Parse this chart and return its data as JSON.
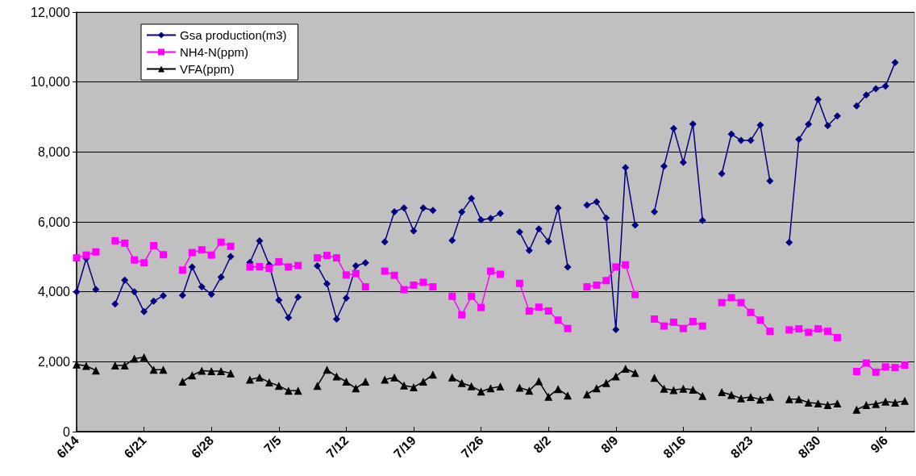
{
  "chart_data": {
    "type": "line",
    "x": [
      "--06-14",
      "--06-15",
      "--06-16",
      "--06-17",
      "--06-18",
      "--06-19",
      "--06-20",
      "--06-21",
      "--06-22",
      "--06-23",
      "--06-24",
      "--06-25",
      "--06-26",
      "--06-27",
      "--06-28",
      "--06-29",
      "--06-30",
      "--07-01",
      "--07-02",
      "--07-03",
      "--07-04",
      "--07-05",
      "--07-06",
      "--07-07",
      "--07-08",
      "--07-09",
      "--07-10",
      "--07-11",
      "--07-12",
      "--07-13",
      "--07-14",
      "--07-15",
      "--07-16",
      "--07-17",
      "--07-18",
      "--07-19",
      "--07-20",
      "--07-21",
      "--07-22",
      "--07-23",
      "--07-24",
      "--07-25",
      "--07-26",
      "--07-27",
      "--07-28",
      "--07-29",
      "--07-30",
      "--07-31",
      "--08-01",
      "--08-02",
      "--08-03",
      "--08-04",
      "--08-05",
      "--08-06",
      "--08-07",
      "--08-08",
      "--08-09",
      "--08-10",
      "--08-11",
      "--08-12",
      "--08-13",
      "--08-14",
      "--08-15",
      "--08-16",
      "--08-17",
      "--08-18",
      "--08-19",
      "--08-20",
      "--08-21",
      "--08-22",
      "--08-23",
      "--08-24",
      "--08-25",
      "--08-26",
      "--08-27",
      "--08-28",
      "--08-29",
      "--08-30",
      "--08-31",
      "--09-01",
      "--09-02",
      "--09-03",
      "--09-04",
      "--09-05",
      "--09-06",
      "--09-07",
      "--09-08"
    ],
    "series": [
      {
        "name": "Gsa production(m3)",
        "color": "#000080",
        "marker": "diamond",
        "values": [
          4000,
          4950,
          4070,
          null,
          3650,
          4330,
          4000,
          3430,
          3730,
          3890,
          null,
          3900,
          4710,
          4140,
          3930,
          4420,
          5010,
          null,
          4840,
          5460,
          4770,
          3760,
          3260,
          3850,
          null,
          4740,
          4230,
          3220,
          3820,
          4740,
          4830,
          null,
          5430,
          6290,
          6400,
          5740,
          6400,
          6330,
          null,
          5470,
          6280,
          6670,
          6060,
          6100,
          6240,
          null,
          5710,
          5180,
          5800,
          5440,
          6400,
          4710,
          null,
          6480,
          6570,
          6110,
          2920,
          7550,
          5910,
          null,
          6290,
          7590,
          8670,
          7700,
          8800,
          6040,
          null,
          7380,
          8510,
          8330,
          8330,
          8770,
          7170,
          null,
          5410,
          8360,
          8790,
          9500,
          8750,
          9030,
          null,
          9320,
          9630,
          9810,
          9880,
          10560,
          null
        ]
      },
      {
        "name": "NH4-N(ppm)",
        "color": "#ff00ff",
        "marker": "square",
        "values": [
          4970,
          5050,
          5140,
          null,
          5460,
          5390,
          4910,
          4830,
          5320,
          5060,
          null,
          4620,
          5120,
          5200,
          5050,
          5420,
          5300,
          null,
          4710,
          4720,
          4670,
          4860,
          4710,
          4750,
          null,
          4970,
          5040,
          4970,
          4480,
          4520,
          4140,
          null,
          4590,
          4470,
          4060,
          4190,
          4270,
          4140,
          null,
          3870,
          3340,
          3870,
          3550,
          4590,
          4500,
          null,
          4240,
          3450,
          3560,
          3450,
          3190,
          2950,
          null,
          4140,
          4190,
          4320,
          4710,
          4770,
          3920,
          null,
          3220,
          3020,
          3130,
          2950,
          3150,
          3020,
          null,
          3690,
          3830,
          3690,
          3410,
          3190,
          2870,
          null,
          2910,
          2940,
          2840,
          2940,
          2870,
          2690,
          null,
          1720,
          1960,
          1700,
          1850,
          1830,
          1900
        ]
      },
      {
        "name": "VFA(ppm)",
        "color": "#000000",
        "marker": "triangle",
        "values": [
          1920,
          1880,
          1750,
          null,
          1890,
          1890,
          2090,
          2130,
          1770,
          1770,
          null,
          1430,
          1610,
          1740,
          1730,
          1730,
          1670,
          null,
          1490,
          1550,
          1410,
          1310,
          1170,
          1170,
          null,
          1310,
          1770,
          1580,
          1430,
          1240,
          1430,
          null,
          1490,
          1550,
          1320,
          1270,
          1430,
          1630,
          null,
          1550,
          1390,
          1300,
          1150,
          1240,
          1290,
          null,
          1260,
          1170,
          1440,
          1000,
          1220,
          1030,
          null,
          1070,
          1240,
          1390,
          1580,
          1800,
          1680,
          null,
          1540,
          1230,
          1190,
          1230,
          1200,
          1020,
          null,
          1130,
          1050,
          950,
          990,
          920,
          1000,
          null,
          930,
          930,
          830,
          810,
          760,
          810,
          null,
          630,
          760,
          790,
          860,
          830,
          880
        ]
      }
    ],
    "xlim": [
      "--06-14",
      "--09-09"
    ],
    "xticks": [
      {
        "value": "--06-14",
        "label": "6/14"
      },
      {
        "value": "--06-21",
        "label": "6/21"
      },
      {
        "value": "--06-28",
        "label": "6/28"
      },
      {
        "value": "--07-05",
        "label": "7/5"
      },
      {
        "value": "--07-12",
        "label": "7/12"
      },
      {
        "value": "--07-19",
        "label": "7/19"
      },
      {
        "value": "--07-26",
        "label": "7/26"
      },
      {
        "value": "--08-02",
        "label": "8/2"
      },
      {
        "value": "--08-09",
        "label": "8/9"
      },
      {
        "value": "--08-16",
        "label": "8/16"
      },
      {
        "value": "--08-23",
        "label": "8/23"
      },
      {
        "value": "--08-30",
        "label": "8/30"
      },
      {
        "value": "--09-06",
        "label": "9/6"
      }
    ],
    "ylim": [
      0,
      12000
    ],
    "yticks": [
      0,
      {
        "value": 2000,
        "label": "2,000"
      },
      {
        "value": 4000,
        "label": "4,000"
      },
      {
        "value": 6000,
        "label": "6,000"
      },
      {
        "value": 8000,
        "label": "8,000"
      },
      {
        "value": 10000,
        "label": "10,000"
      },
      {
        "value": 12000,
        "label": "12,000"
      }
    ],
    "grid": "y",
    "legend": "top left",
    "line_style": "solid"
  }
}
